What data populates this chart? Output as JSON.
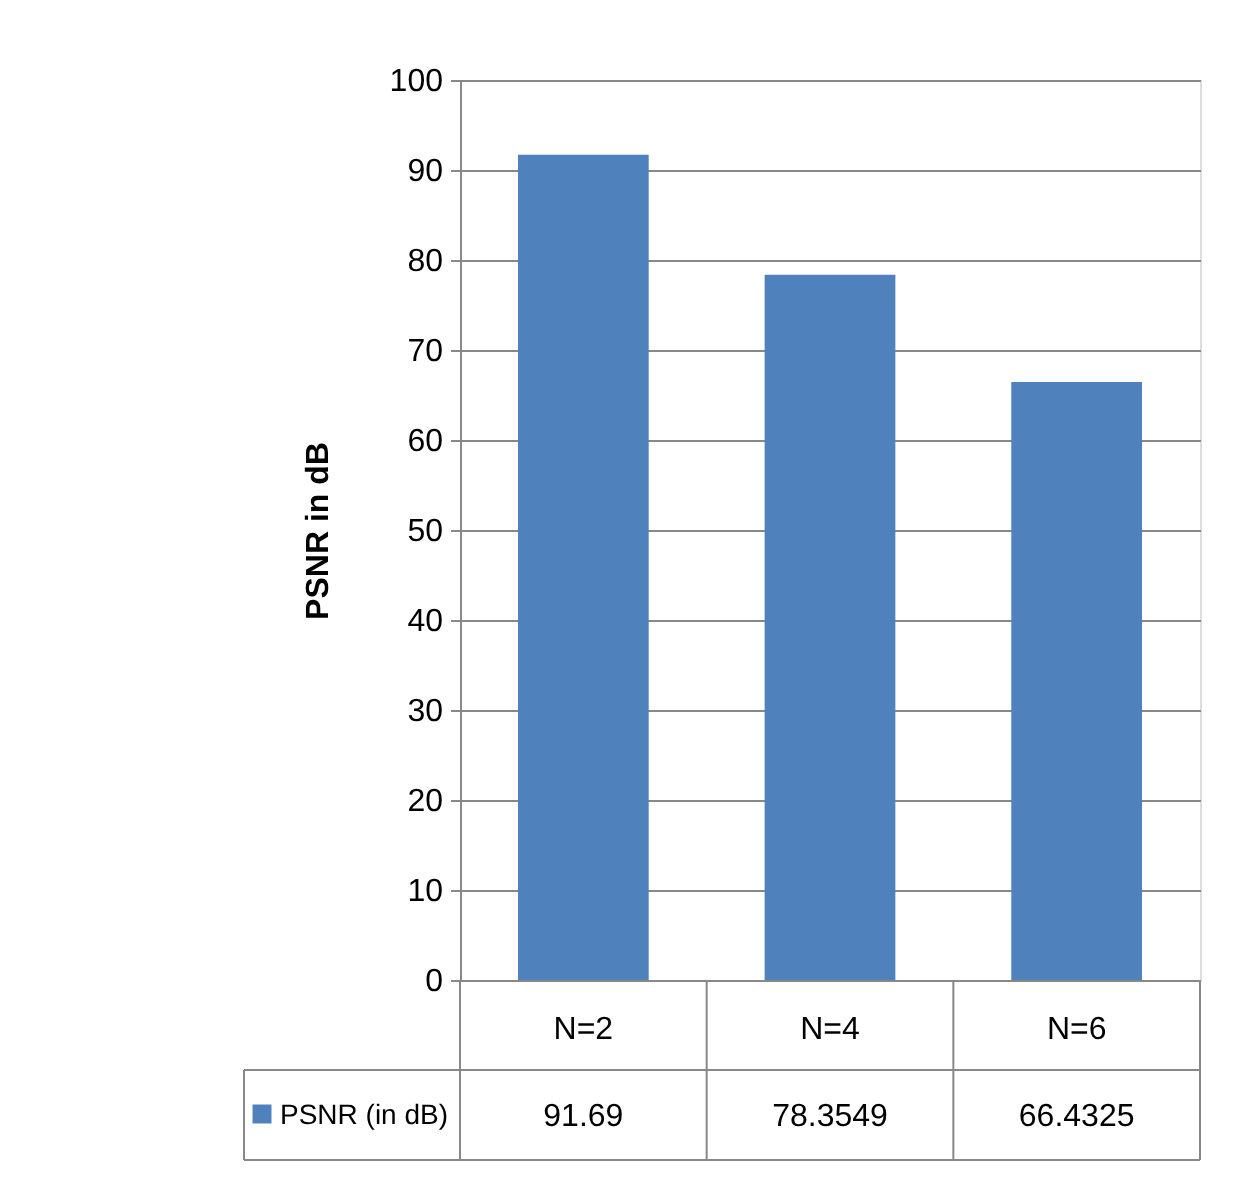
{
  "chart_data": {
    "type": "bar",
    "ylabel": "PSNR in dB",
    "categories": [
      "N=2",
      "N=4",
      "N=6"
    ],
    "series": [
      {
        "name": "PSNR (in dB)",
        "color": "#4f81bd",
        "values": [
          91.69,
          78.3549,
          66.4325
        ]
      }
    ],
    "ylim": [
      0,
      100
    ],
    "yticks": [
      0,
      10,
      20,
      30,
      40,
      50,
      60,
      70,
      80,
      90,
      100
    ],
    "grid": "y",
    "data_labels": true,
    "legend": "bottom left"
  }
}
